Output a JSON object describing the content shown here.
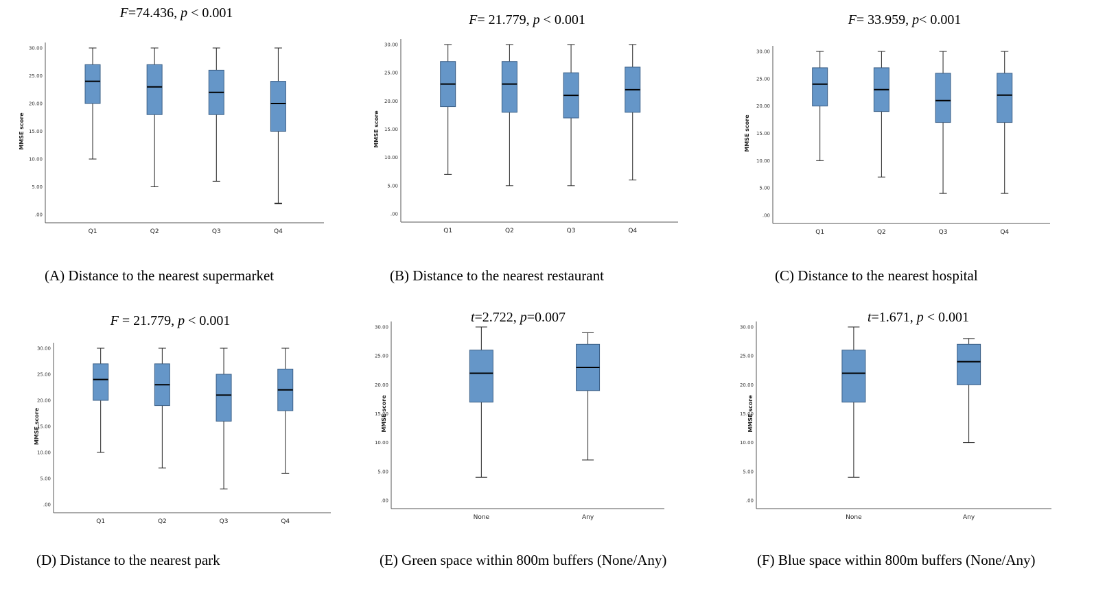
{
  "chart_data": [
    {
      "type": "box",
      "stat_prefix": "F",
      "stat_value": "=74.436, ",
      "p_prefix": "p",
      "p_value": " < 0.001",
      "caption": "(A) Distance to the nearest supermarket",
      "ylabel": "MMSE score",
      "yticks": [
        "30.00",
        "25.00",
        "20.00",
        "15.00",
        "10.00",
        "5.00",
        ".00"
      ],
      "ylim": [
        0,
        30
      ],
      "categories": [
        "Q1",
        "Q2",
        "Q3",
        "Q4"
      ],
      "boxes": [
        {
          "min": 10,
          "q1": 20,
          "median": 24,
          "q3": 27,
          "max": 30
        },
        {
          "min": 5,
          "q1": 18,
          "median": 23,
          "q3": 27,
          "max": 30
        },
        {
          "min": 6,
          "q1": 18,
          "median": 22,
          "q3": 26,
          "max": 30
        },
        {
          "min": 2,
          "q1": 15,
          "median": 20,
          "q3": 24,
          "max": 30
        }
      ]
    },
    {
      "type": "box",
      "stat_prefix": "F",
      "stat_value": "= 21.779, ",
      "p_prefix": "p",
      "p_value": " < 0.001",
      "caption": "(B) Distance to the nearest restaurant",
      "ylabel": "MMSE score",
      "yticks": [
        "30.00",
        "25.00",
        "20.00",
        "15.00",
        "10.00",
        "5.00",
        ".00"
      ],
      "ylim": [
        0,
        30
      ],
      "categories": [
        "Q1",
        "Q2",
        "Q3",
        "Q4"
      ],
      "boxes": [
        {
          "min": 7,
          "q1": 19,
          "median": 23,
          "q3": 27,
          "max": 30
        },
        {
          "min": 5,
          "q1": 18,
          "median": 23,
          "q3": 27,
          "max": 30
        },
        {
          "min": 5,
          "q1": 17,
          "median": 21,
          "q3": 25,
          "max": 30
        },
        {
          "min": 6,
          "q1": 18,
          "median": 22,
          "q3": 26,
          "max": 30
        }
      ]
    },
    {
      "type": "box",
      "stat_prefix": "F",
      "stat_value": "= 33.959, ",
      "p_prefix": "p",
      "p_value": "< 0.001",
      "caption": "(C) Distance to the nearest hospital",
      "ylabel": "MMSE score",
      "yticks": [
        "30.00",
        "25.00",
        "20.00",
        "15.00",
        "10.00",
        "5.00",
        ".00"
      ],
      "ylim": [
        0,
        30
      ],
      "categories": [
        "Q1",
        "Q2",
        "Q3",
        "Q4"
      ],
      "boxes": [
        {
          "min": 10,
          "q1": 20,
          "median": 24,
          "q3": 27,
          "max": 30
        },
        {
          "min": 7,
          "q1": 19,
          "median": 23,
          "q3": 27,
          "max": 30
        },
        {
          "min": 4,
          "q1": 17,
          "median": 21,
          "q3": 26,
          "max": 30
        },
        {
          "min": 4,
          "q1": 17,
          "median": 22,
          "q3": 26,
          "max": 30
        }
      ]
    },
    {
      "type": "box",
      "stat_prefix": "F",
      "stat_value": " = 21.779, ",
      "p_prefix": "p",
      "p_value": " < 0.001",
      "caption": "(D) Distance to the nearest park",
      "ylabel": "MMSE score",
      "yticks": [
        "30.00",
        "25.00",
        "20.00",
        "15.00",
        "10.00",
        "5.00",
        ".00"
      ],
      "ylim": [
        0,
        30
      ],
      "categories": [
        "Q1",
        "Q2",
        "Q3",
        "Q4"
      ],
      "boxes": [
        {
          "min": 10,
          "q1": 20,
          "median": 24,
          "q3": 27,
          "max": 30
        },
        {
          "min": 7,
          "q1": 19,
          "median": 23,
          "q3": 27,
          "max": 30
        },
        {
          "min": 3,
          "q1": 16,
          "median": 21,
          "q3": 25,
          "max": 30
        },
        {
          "min": 6,
          "q1": 18,
          "median": 22,
          "q3": 26,
          "max": 30
        }
      ]
    },
    {
      "type": "box",
      "stat_prefix": "t",
      "stat_value": "=2.722, ",
      "p_prefix": "p",
      "p_value": "=0.007",
      "caption": "(E) Green space within 800m buffers (None/Any)",
      "ylabel": "MMSE score",
      "yticks": [
        "30.00",
        "25.00",
        "20.00",
        "15.00",
        "10.00",
        "5.00",
        ".00"
      ],
      "ylim": [
        0,
        30
      ],
      "categories": [
        "None",
        "Any"
      ],
      "boxes": [
        {
          "min": 4,
          "q1": 17,
          "median": 22,
          "q3": 26,
          "max": 30
        },
        {
          "min": 7,
          "q1": 19,
          "median": 23,
          "q3": 27,
          "max": 29
        }
      ]
    },
    {
      "type": "box",
      "stat_prefix": "t",
      "stat_value": "=1.671, ",
      "p_prefix": "p",
      "p_value": " < 0.001",
      "caption": "(F) Blue space within 800m buffers (None/Any)",
      "ylabel": "MMSE score",
      "yticks": [
        "30.00",
        "25.00",
        "20.00",
        "15.00",
        "10.00",
        "5.00",
        ".00"
      ],
      "ylim": [
        0,
        30
      ],
      "categories": [
        "None",
        "Any"
      ],
      "boxes": [
        {
          "min": 4,
          "q1": 17,
          "median": 22,
          "q3": 26,
          "max": 30
        },
        {
          "min": 10,
          "q1": 20,
          "median": 24,
          "q3": 27,
          "max": 28
        }
      ]
    }
  ],
  "colors": {
    "box_fill": "#6596c8",
    "box_stroke": "#3b5f86",
    "axis": "#555555",
    "median": "#000000",
    "whisker": "#222222"
  }
}
